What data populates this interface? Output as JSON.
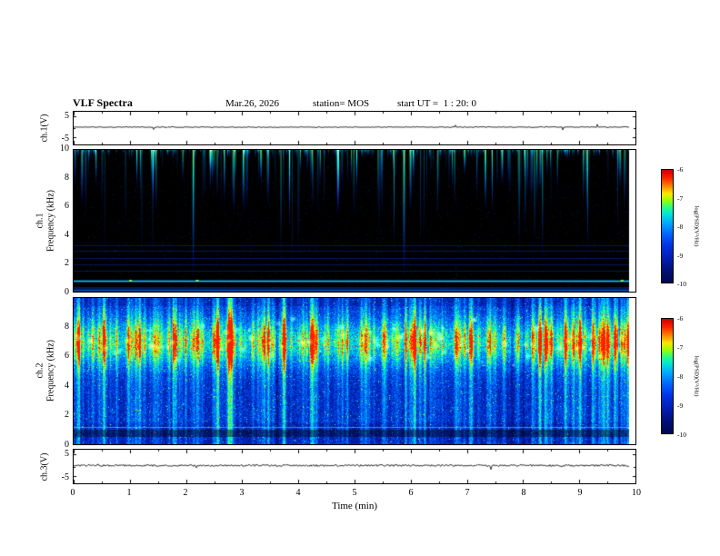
{
  "header": {
    "title": "VLF Spectra",
    "date": "Mar.26, 2026",
    "station": "station= MOS",
    "start_ut": "start UT =  1 : 20: 0"
  },
  "axes": {
    "x": {
      "label": "Time (min)",
      "range": [
        0,
        10
      ],
      "ticks": [
        0,
        1,
        2,
        3,
        4,
        5,
        6,
        7,
        8,
        9,
        10
      ]
    },
    "wave_y": {
      "range": [
        -5,
        5
      ],
      "ticks": [
        "5",
        "-5"
      ]
    },
    "freq_y_ch1": {
      "range": [
        0,
        10
      ],
      "ticks": [
        "10",
        "8",
        "6",
        "4",
        "2",
        "0"
      ]
    },
    "freq_y_ch2": {
      "range": [
        0,
        10
      ],
      "ticks": [
        "8",
        "6",
        "4",
        "2",
        "0"
      ]
    }
  },
  "panels": {
    "ch1_wave": {
      "label": "ch.1(V)"
    },
    "ch1_spec": {
      "label_line1": "ch.1",
      "label_line2": "Frequency (kHz)"
    },
    "ch2_spec": {
      "label_line1": "ch.2",
      "label_line2": "Frequency (kHz)"
    },
    "ch3_wave": {
      "label": "ch.3(V)"
    }
  },
  "colorbar": {
    "label": "log(PSD)(V²/Hz)",
    "ticks": [
      "-6",
      "-7",
      "-8",
      "-9",
      "-10"
    ],
    "range": [
      -10,
      -6
    ]
  },
  "chart_data": {
    "figure": "VLF quick-look spectra, 3 channels",
    "date": "Mar.26, 2026",
    "station": "MOS",
    "start_ut": "1:20:0",
    "x_axis": {
      "label": "Time (min)",
      "range": [
        0,
        10
      ],
      "ticks": [
        0,
        1,
        2,
        3,
        4,
        5,
        6,
        7,
        8,
        9,
        10
      ],
      "data_end_min": 9.85
    },
    "panels": [
      {
        "id": "ch1_waveform",
        "type": "line",
        "ylabel": "ch.1(V)",
        "ylim": [
          -5,
          5
        ],
        "yticks": [
          5,
          -5
        ],
        "description": "near-flat voltage trace at ~0 V with very low amplitude noise"
      },
      {
        "id": "ch1_spectrogram",
        "type": "heatmap",
        "ylabel": "ch.1 Frequency (kHz)",
        "ylim": [
          0,
          10
        ],
        "yticks": [
          10,
          8,
          6,
          4,
          2,
          0
        ],
        "zlabel": "log(PSD)(V²/Hz)",
        "zlim": [
          -10,
          -6
        ],
        "background_level": -10,
        "features": {
          "vertical_streaks": {
            "count": 150,
            "from_khz": 10,
            "typical_extent_khz": [
              5,
              10
            ],
            "occasional_extent_khz": [
              1,
              10
            ],
            "colors": [
              "blue",
              "cyan",
              "green"
            ]
          },
          "horizontal_lines_khz": [
            3.3,
            2.9,
            2.4,
            1.9,
            1.5
          ],
          "bright_line_khz": 0.8,
          "low_band_khz": [
            0,
            0.35
          ]
        }
      },
      {
        "id": "ch2_spectrogram",
        "type": "heatmap",
        "ylabel": "ch.2 Frequency (kHz)",
        "ylim": [
          0,
          10
        ],
        "yticks": [
          8,
          6,
          4,
          2,
          0
        ],
        "zlabel": "log(PSD)(V²/Hz)",
        "zlim": [
          -10,
          -6
        ],
        "features": {
          "broadband_noise": "blue speckle across 0-10 kHz",
          "active_band_khz": [
            5.5,
            8.5
          ],
          "band_peak_khz": 7,
          "blob_count": 95,
          "vertical_streaks_count": 240,
          "horizontal_line_khz": 1.2,
          "dark_strip_khz": [
            0.5,
            1.0
          ]
        }
      },
      {
        "id": "ch3_waveform",
        "type": "line",
        "ylabel": "ch.3(V)",
        "ylim": [
          -5,
          5
        ],
        "yticks": [
          5,
          -5
        ],
        "description": "near-flat voltage trace at ~0 V with small noise and occasional spikes"
      }
    ],
    "colorbar": {
      "label": "log(PSD)(V²/Hz)",
      "ticks": [
        -6,
        -7,
        -8,
        -9,
        -10
      ],
      "colormap": "jet-like, red (high) to dark blue (low)",
      "legend_position": "right of each spectrogram"
    }
  }
}
